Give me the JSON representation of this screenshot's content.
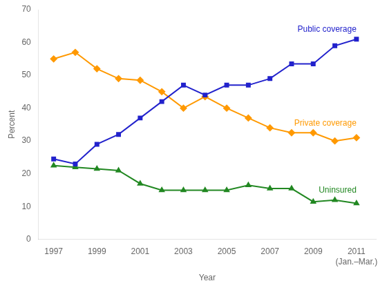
{
  "chart_data": {
    "type": "line",
    "x_label": "Year",
    "y_label": "Percent",
    "x": [
      1997,
      1998,
      1999,
      2000,
      2001,
      2002,
      2003,
      2004,
      2005,
      2006,
      2007,
      2008,
      2009,
      2010,
      2011
    ],
    "series": [
      {
        "name": "Public coverage",
        "color": "#2222cc",
        "marker": "square",
        "values": [
          24.5,
          23.0,
          29.0,
          32.0,
          37.0,
          42.0,
          47.0,
          44.0,
          47.0,
          47.0,
          49.0,
          53.5,
          53.5,
          59.0,
          61.0
        ]
      },
      {
        "name": "Private coverage",
        "color": "#ff9900",
        "marker": "diamond",
        "values": [
          55.0,
          57.0,
          52.0,
          49.0,
          48.5,
          45.0,
          40.0,
          43.5,
          40.0,
          37.0,
          34.0,
          32.5,
          32.5,
          30.0,
          31.0
        ]
      },
      {
        "name": "Uninsured",
        "color": "#228822",
        "marker": "triangle",
        "values": [
          22.5,
          22.0,
          21.5,
          21.0,
          17.0,
          15.0,
          15.0,
          15.0,
          15.0,
          16.5,
          15.5,
          15.5,
          11.5,
          12.0,
          11.0
        ]
      }
    ],
    "xlim": [
      1996.3,
      2011.9
    ],
    "xticks": [
      1997,
      1999,
      2001,
      2003,
      2005,
      2007,
      2009,
      2011
    ],
    "ylim": [
      0,
      70
    ],
    "yticks": [
      0,
      10,
      20,
      30,
      40,
      50,
      60,
      70
    ],
    "annotations": [
      {
        "text": "(Jan.–Mar.)",
        "x": 2011
      }
    ],
    "grid": false
  }
}
